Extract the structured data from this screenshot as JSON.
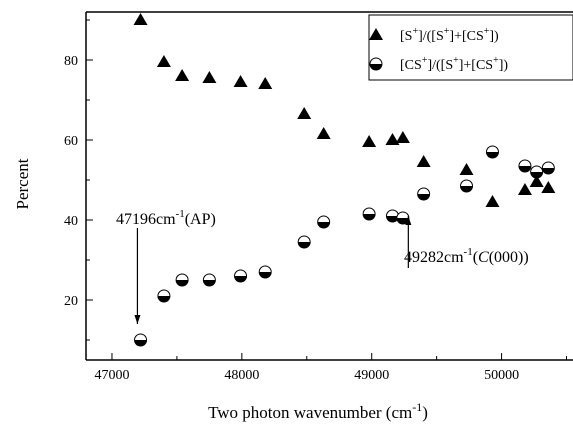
{
  "chart_data": {
    "type": "scatter",
    "xlabel": "Two photon wavenumber (cm",
    "xlabel_sup": "-1",
    "xlabel_end": ")",
    "ylabel": "Percent",
    "xlim": [
      46800,
      50550
    ],
    "ylim": [
      5,
      92
    ],
    "xticks": [
      47000,
      48000,
      49000,
      50000
    ],
    "xtick_labels": [
      "47000",
      "48000",
      "49000",
      "50000"
    ],
    "yticks": [
      20,
      40,
      60,
      80
    ],
    "ytick_labels": [
      "20",
      "40",
      "60",
      "80"
    ],
    "legend_placement": "top-right",
    "series": [
      {
        "legend": {
          "t1": "[S",
          "s1": "+",
          "t2": "]/([S",
          "s2": "+",
          "t3": "]+[CS",
          "s3": "+",
          "t4": "])"
        },
        "marker": "filled-triangle",
        "x": [
          47220,
          47400,
          47540,
          47750,
          47990,
          48180,
          48480,
          48630,
          48980,
          49160,
          49240,
          49400,
          49730,
          49930,
          50180,
          50270,
          50360
        ],
        "y": [
          90,
          79.5,
          76,
          75.5,
          74.5,
          74,
          66.5,
          61.5,
          59.5,
          60,
          60.5,
          54.5,
          52.5,
          44.5,
          47.5,
          49.5,
          48
        ]
      },
      {
        "legend": {
          "t1": "[CS",
          "s1": "+",
          "t2": "]/([S",
          "s2": "+",
          "t3": "]+[CS",
          "s3": "+",
          "t4": "])"
        },
        "marker": "half-filled-circle",
        "x": [
          47220,
          47400,
          47540,
          47750,
          47990,
          48180,
          48480,
          48630,
          48980,
          49160,
          49240,
          49400,
          49730,
          49930,
          50180,
          50270,
          50360
        ],
        "y": [
          10,
          21,
          25,
          25,
          26,
          27,
          34.5,
          39.5,
          41.5,
          41,
          40.5,
          46.5,
          48.5,
          57,
          53.5,
          52,
          53
        ]
      }
    ],
    "annotations": [
      {
        "id": "ap",
        "text": "47196cm",
        "sup": "-1",
        "tail": "(AP)",
        "x": 47196,
        "arrow_from_y": 38,
        "arrow_to_y": 14,
        "arrow_dir": "down"
      },
      {
        "id": "c000",
        "text": "49282cm",
        "sup": "-1",
        "tail_pre": "(",
        "tail_italic": "C",
        "tail_post": "(000))",
        "x": 49282,
        "arrow_from_y": 28,
        "arrow_to_y": 41,
        "arrow_dir": "up"
      }
    ]
  }
}
